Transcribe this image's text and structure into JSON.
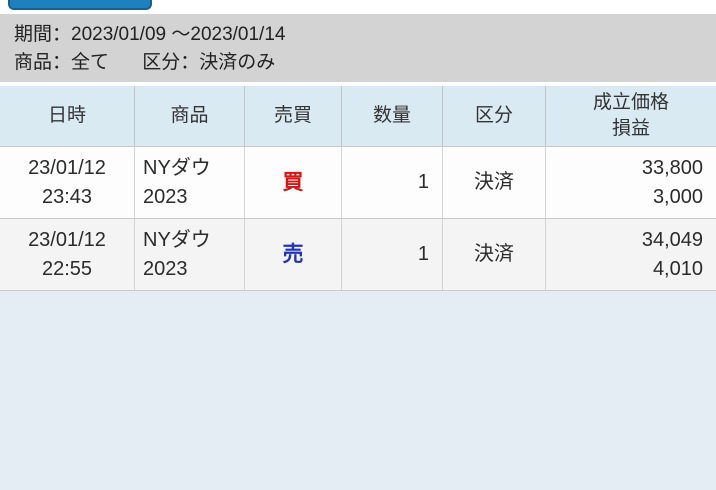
{
  "colors": {
    "button_blue": "#1e81bd",
    "button_border": "#15628f",
    "info_bar_bg": "#d3d3d3",
    "table_header_bg": "#daeaf3",
    "row_bg": "#fdfdfd",
    "row_alt_bg": "#f4f4f4",
    "bottom_area_bg": "#e4edf4",
    "buy_red": "#dd1111",
    "sell_blue": "#2233bb"
  },
  "filters": {
    "period": "期間：2023/01/09 ～2023/01/14",
    "product": "商品：全て",
    "category": "区分：決済のみ"
  },
  "table": {
    "headers": {
      "datetime": "日時",
      "product": "商品",
      "side": "売買",
      "quantity": "数量",
      "category": "区分",
      "price_line1": "成立価格",
      "price_line2": "損益"
    },
    "rows": [
      {
        "date": "23/01/12",
        "time": "23:43",
        "product_line1": "NYダウ",
        "product_line2": "2023",
        "side": "買",
        "quantity": "1",
        "category": "決済",
        "price": "33,800",
        "profit": "3,000"
      },
      {
        "date": "23/01/12",
        "time": "22:55",
        "product_line1": "NYダウ",
        "product_line2": "2023",
        "side": "売",
        "quantity": "1",
        "category": "決済",
        "price": "34,049",
        "profit": "4,010"
      }
    ]
  }
}
